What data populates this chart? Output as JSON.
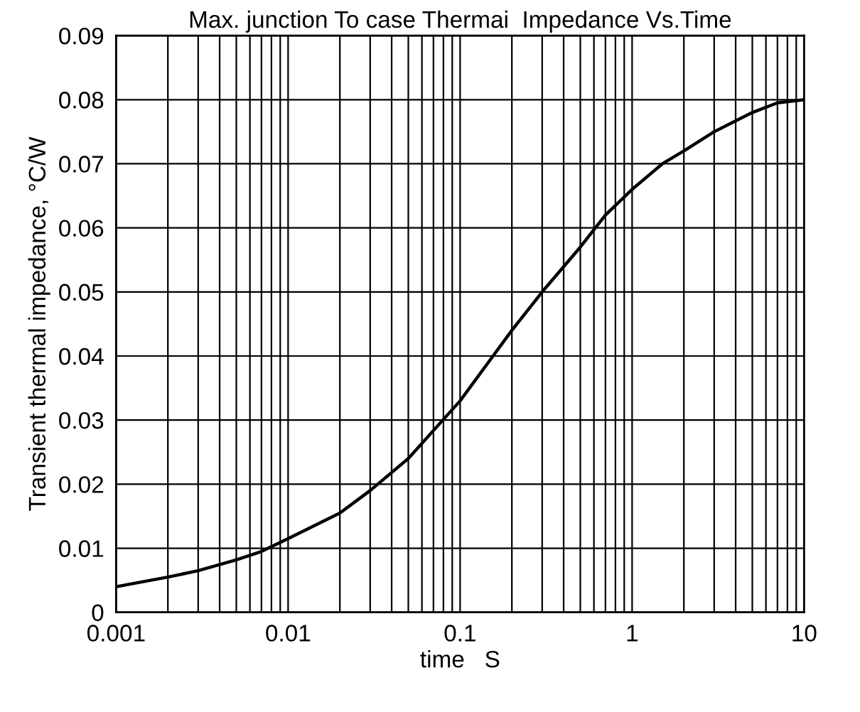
{
  "chart_data": {
    "type": "line",
    "title": "Max. junction To case Thermai  Impedance Vs.Time",
    "xlabel": "time   S",
    "ylabel": "Transient thermal impedance, °C/W",
    "log": "x",
    "x": [
      0.001,
      0.002,
      0.003,
      0.005,
      0.007,
      0.01,
      0.02,
      0.03,
      0.05,
      0.1,
      0.2,
      0.3,
      0.5,
      0.7,
      1,
      1.5,
      2,
      3,
      5,
      7,
      10
    ],
    "series": [
      {
        "color": "#000000",
        "values": [
          0.004,
          0.0055,
          0.0065,
          0.0082,
          0.0095,
          0.0115,
          0.0155,
          0.019,
          0.024,
          0.033,
          0.044,
          0.05,
          0.057,
          0.062,
          0.066,
          0.07,
          0.072,
          0.075,
          0.078,
          0.0795,
          0.08
        ]
      }
    ],
    "xlim": [
      0.001,
      10
    ],
    "ylim": [
      0,
      0.09
    ],
    "xticks": [
      0.001,
      {
        "value": 0.002,
        "label": null
      },
      {
        "value": 0.003,
        "label": null
      },
      {
        "value": 0.004,
        "label": null
      },
      {
        "value": 0.005,
        "label": null
      },
      {
        "value": 0.006,
        "label": null
      },
      {
        "value": 0.007,
        "label": null
      },
      {
        "value": 0.008,
        "label": null
      },
      {
        "value": 0.009,
        "label": null
      },
      0.01,
      {
        "value": 0.02,
        "label": null
      },
      {
        "value": 0.03,
        "label": null
      },
      {
        "value": 0.04,
        "label": null
      },
      {
        "value": 0.05,
        "label": null
      },
      {
        "value": 0.06,
        "label": null
      },
      {
        "value": 0.07,
        "label": null
      },
      {
        "value": 0.08,
        "label": null
      },
      {
        "value": 0.09,
        "label": null
      },
      {
        "value": 0.1,
        "label": "0.1"
      },
      {
        "value": 0.2,
        "label": null
      },
      {
        "value": 0.3,
        "label": null
      },
      {
        "value": 0.4,
        "label": null
      },
      {
        "value": 0.5,
        "label": null
      },
      {
        "value": 0.6,
        "label": null
      },
      {
        "value": 0.7,
        "label": null
      },
      {
        "value": 0.8,
        "label": null
      },
      {
        "value": 0.9,
        "label": null
      },
      1,
      {
        "value": 2,
        "label": null
      },
      {
        "value": 3,
        "label": null
      },
      {
        "value": 4,
        "label": null
      },
      {
        "value": 5,
        "label": null
      },
      {
        "value": 6,
        "label": null
      },
      {
        "value": 7,
        "label": null
      },
      {
        "value": 8,
        "label": null
      },
      {
        "value": 9,
        "label": null
      },
      10
    ],
    "yticks": [
      0,
      0.01,
      0.02,
      0.03,
      0.04,
      0.05,
      0.06,
      0.07,
      0.08,
      0.09
    ],
    "grid": true,
    "legend": false
  }
}
